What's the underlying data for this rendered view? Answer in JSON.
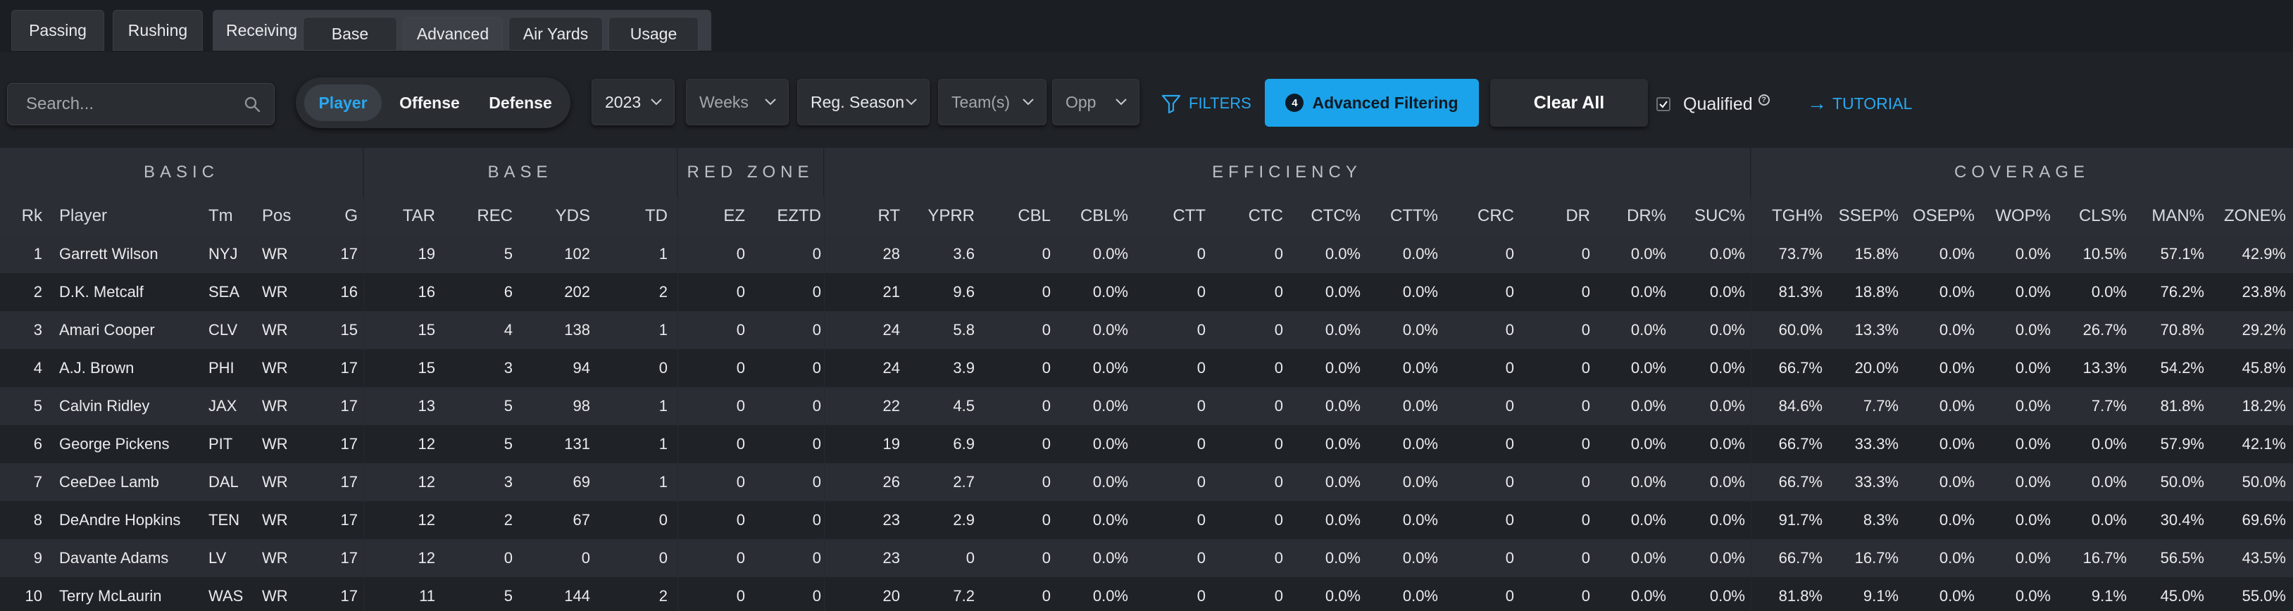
{
  "tabs": {
    "passing": "Passing",
    "rushing": "Rushing",
    "receiving": "Receiving",
    "sub": [
      "Base",
      "Advanced",
      "Air Yards",
      "Usage"
    ]
  },
  "search": {
    "placeholder": "Search..."
  },
  "segment": {
    "player": "Player",
    "offense": "Offense",
    "defense": "Defense"
  },
  "dropdowns": {
    "season": "2023",
    "weeks": "Weeks",
    "season_type": "Reg. Season",
    "teams": "Team(s)",
    "opp": "Opp"
  },
  "filters_label": "FILTERS",
  "advanced": {
    "count": "4",
    "label": "Advanced Filtering"
  },
  "clear_all": "Clear All",
  "qualified": "Qualified",
  "tutorial": "TUTORIAL",
  "groups": [
    "BASIC",
    "BASE",
    "RED ZONE",
    "EFFICIENCY",
    "COVERAGE"
  ],
  "columns": [
    "Rk",
    "Player",
    "Tm",
    "Pos",
    "G",
    "TAR",
    "REC",
    "YDS",
    "TD",
    "EZ",
    "EZTD",
    "RT",
    "YPRR",
    "CBL",
    "CBL%",
    "CTT",
    "CTC",
    "CTC%",
    "CTT%",
    "CRC",
    "DR",
    "DR%",
    "SUC%",
    "TGH%",
    "SSEP%",
    "OSEP%",
    "WOP%",
    "CLS%",
    "MAN%",
    "ZONE%"
  ],
  "rows": [
    [
      "1",
      "Garrett Wilson",
      "NYJ",
      "WR",
      "17",
      "19",
      "5",
      "102",
      "1",
      "0",
      "0",
      "28",
      "3.6",
      "0",
      "0.0%",
      "0",
      "0",
      "0.0%",
      "0.0%",
      "0",
      "0",
      "0.0%",
      "0.0%",
      "73.7%",
      "15.8%",
      "0.0%",
      "0.0%",
      "10.5%",
      "57.1%",
      "42.9%"
    ],
    [
      "2",
      "D.K. Metcalf",
      "SEA",
      "WR",
      "16",
      "16",
      "6",
      "202",
      "2",
      "0",
      "0",
      "21",
      "9.6",
      "0",
      "0.0%",
      "0",
      "0",
      "0.0%",
      "0.0%",
      "0",
      "0",
      "0.0%",
      "0.0%",
      "81.3%",
      "18.8%",
      "0.0%",
      "0.0%",
      "0.0%",
      "76.2%",
      "23.8%"
    ],
    [
      "3",
      "Amari Cooper",
      "CLV",
      "WR",
      "15",
      "15",
      "4",
      "138",
      "1",
      "0",
      "0",
      "24",
      "5.8",
      "0",
      "0.0%",
      "0",
      "0",
      "0.0%",
      "0.0%",
      "0",
      "0",
      "0.0%",
      "0.0%",
      "60.0%",
      "13.3%",
      "0.0%",
      "0.0%",
      "26.7%",
      "70.8%",
      "29.2%"
    ],
    [
      "4",
      "A.J. Brown",
      "PHI",
      "WR",
      "17",
      "15",
      "3",
      "94",
      "0",
      "0",
      "0",
      "24",
      "3.9",
      "0",
      "0.0%",
      "0",
      "0",
      "0.0%",
      "0.0%",
      "0",
      "0",
      "0.0%",
      "0.0%",
      "66.7%",
      "20.0%",
      "0.0%",
      "0.0%",
      "13.3%",
      "54.2%",
      "45.8%"
    ],
    [
      "5",
      "Calvin Ridley",
      "JAX",
      "WR",
      "17",
      "13",
      "5",
      "98",
      "1",
      "0",
      "0",
      "22",
      "4.5",
      "0",
      "0.0%",
      "0",
      "0",
      "0.0%",
      "0.0%",
      "0",
      "0",
      "0.0%",
      "0.0%",
      "84.6%",
      "7.7%",
      "0.0%",
      "0.0%",
      "7.7%",
      "81.8%",
      "18.2%"
    ],
    [
      "6",
      "George Pickens",
      "PIT",
      "WR",
      "17",
      "12",
      "5",
      "131",
      "1",
      "0",
      "0",
      "19",
      "6.9",
      "0",
      "0.0%",
      "0",
      "0",
      "0.0%",
      "0.0%",
      "0",
      "0",
      "0.0%",
      "0.0%",
      "66.7%",
      "33.3%",
      "0.0%",
      "0.0%",
      "0.0%",
      "57.9%",
      "42.1%"
    ],
    [
      "7",
      "CeeDee Lamb",
      "DAL",
      "WR",
      "17",
      "12",
      "3",
      "69",
      "1",
      "0",
      "0",
      "26",
      "2.7",
      "0",
      "0.0%",
      "0",
      "0",
      "0.0%",
      "0.0%",
      "0",
      "0",
      "0.0%",
      "0.0%",
      "66.7%",
      "33.3%",
      "0.0%",
      "0.0%",
      "0.0%",
      "50.0%",
      "50.0%"
    ],
    [
      "8",
      "DeAndre Hopkins",
      "TEN",
      "WR",
      "17",
      "12",
      "2",
      "67",
      "0",
      "0",
      "0",
      "23",
      "2.9",
      "0",
      "0.0%",
      "0",
      "0",
      "0.0%",
      "0.0%",
      "0",
      "0",
      "0.0%",
      "0.0%",
      "91.7%",
      "8.3%",
      "0.0%",
      "0.0%",
      "0.0%",
      "30.4%",
      "69.6%"
    ],
    [
      "9",
      "Davante Adams",
      "LV",
      "WR",
      "17",
      "12",
      "0",
      "0",
      "0",
      "0",
      "0",
      "23",
      "0",
      "0",
      "0.0%",
      "0",
      "0",
      "0.0%",
      "0.0%",
      "0",
      "0",
      "0.0%",
      "0.0%",
      "66.7%",
      "16.7%",
      "0.0%",
      "0.0%",
      "16.7%",
      "56.5%",
      "43.5%"
    ],
    [
      "10",
      "Terry McLaurin",
      "WAS",
      "WR",
      "17",
      "11",
      "5",
      "144",
      "2",
      "0",
      "0",
      "20",
      "7.2",
      "0",
      "0.0%",
      "0",
      "0",
      "0.0%",
      "0.0%",
      "0",
      "0",
      "0.0%",
      "0.0%",
      "81.8%",
      "9.1%",
      "0.0%",
      "0.0%",
      "9.1%",
      "45.0%",
      "55.0%"
    ]
  ]
}
